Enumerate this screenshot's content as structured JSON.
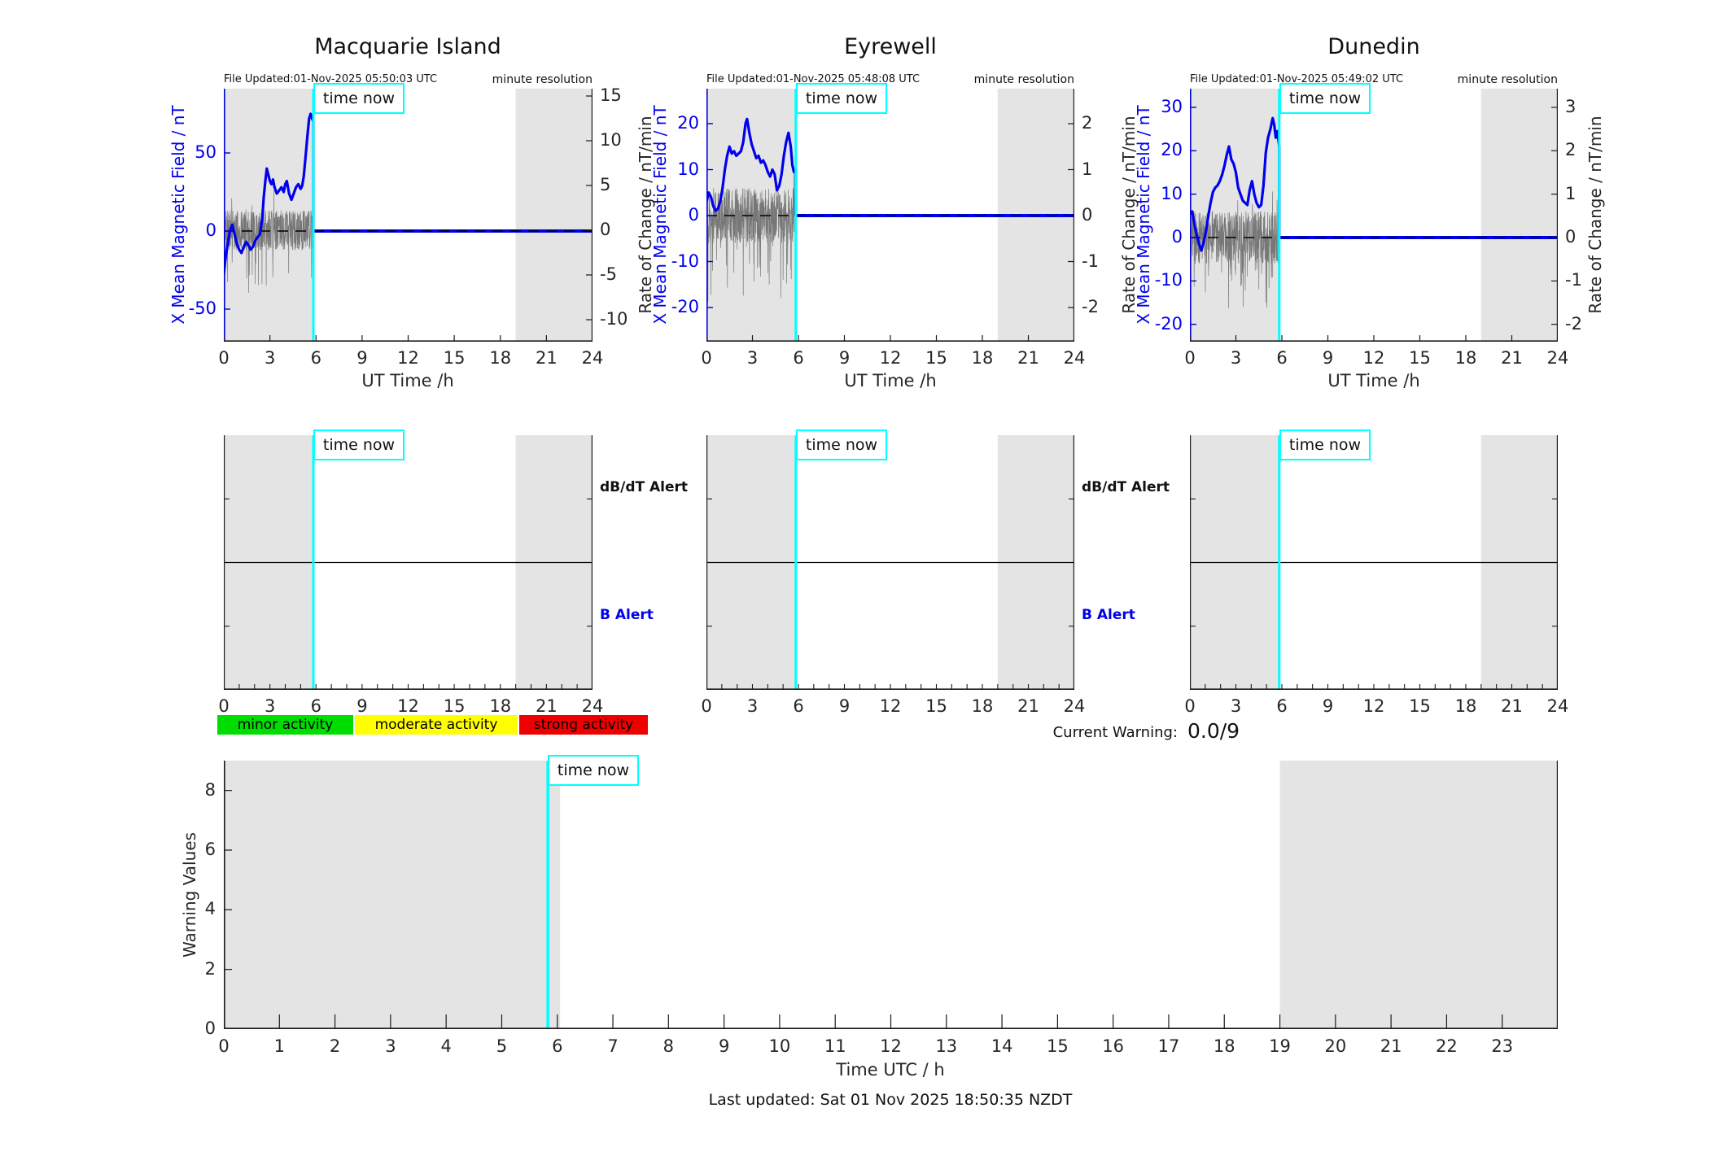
{
  "time_now": {
    "label": "time now",
    "hours_utc": 5.83
  },
  "alerts": {
    "db_dt_label": "dB/dT Alert",
    "b_label": "B Alert"
  },
  "legend": {
    "items": [
      {
        "label": "minor activity",
        "color": "#00dd00"
      },
      {
        "label": "moderate activity",
        "color": "#ffff00"
      },
      {
        "label": "strong activity",
        "color": "#ee0000"
      }
    ]
  },
  "warning": {
    "label": "Current Warning:",
    "value": "0.0/9",
    "scale_max": 9
  },
  "footer": {
    "last_updated": "Last updated: Sat 01 Nov 2025 18:50:35 NZDT"
  },
  "colors": {
    "field_line": "#0000ee",
    "axis_blue": "#0000dd",
    "noise": "#777777",
    "time_now_line": "#00ffff",
    "night_shading": "#e4e4e4",
    "axis_dark": "#1a1a1a"
  },
  "chart_data": [
    {
      "type": "line",
      "title": "Macquarie Island",
      "annotations": {
        "file_updated": "File Updated:01-Nov-2025 05:50:03 UTC",
        "minute_resolution": "minute resolution"
      },
      "xlabel": "UT Time /h",
      "xlim": [
        0,
        24
      ],
      "x_ticks": [
        0,
        3,
        6,
        9,
        12,
        15,
        18,
        21,
        24
      ],
      "night_shading_hours": [
        [
          0,
          5.87
        ],
        [
          19,
          24
        ]
      ],
      "left_axis": {
        "label": "X Mean Magnetic Field / nT",
        "ticks": [
          50,
          0,
          -50
        ],
        "range": [
          -70.8,
          91.1
        ]
      },
      "right_axis": {
        "label": "Rate of Change / nT/min",
        "ticks": [
          15,
          10,
          5,
          0,
          -5,
          -10
        ],
        "range": [
          -12.5,
          15.8
        ]
      },
      "series": [
        {
          "name": "X mean magnetic field",
          "axis": "left",
          "color": "#0000ee",
          "x": [
            0,
            0.1,
            0.25,
            0.4,
            0.55,
            0.7,
            0.85,
            1.0,
            1.15,
            1.3,
            1.45,
            1.6,
            1.75,
            1.9,
            2.05,
            2.2,
            2.35,
            2.5,
            2.6,
            2.7,
            2.8,
            2.9,
            3.0,
            3.1,
            3.2,
            3.3,
            3.45,
            3.6,
            3.75,
            3.9,
            4.0,
            4.1,
            4.25,
            4.4,
            4.55,
            4.7,
            4.85,
            5.0,
            5.1,
            5.2,
            5.3,
            5.45,
            5.55,
            5.65,
            5.75,
            5.83
          ],
          "y": [
            -28,
            -18,
            -8,
            0,
            4,
            -2,
            -8,
            -12,
            -14,
            -10,
            -7,
            -9,
            -12,
            -10,
            -6,
            -4,
            -2,
            8,
            22,
            32,
            40,
            36,
            32,
            30,
            33,
            28,
            24,
            26,
            28,
            25,
            30,
            32,
            24,
            20,
            24,
            28,
            30,
            27,
            29,
            35,
            45,
            62,
            72,
            75,
            72,
            70
          ]
        },
        {
          "name": "rate of change (minute noise)",
          "axis": "right",
          "color": "#777777",
          "synthetic": true,
          "amplitude": 2.2,
          "seed": 11,
          "ends_at_hour": 5.86
        },
        {
          "name": "flat after time now",
          "axis": "left",
          "color": "#0000ee",
          "x": [
            5.83,
            24
          ],
          "y": [
            0,
            0
          ]
        }
      ]
    },
    {
      "type": "line",
      "title": "Eyrewell",
      "annotations": {
        "file_updated": "File Updated:01-Nov-2025 05:48:08 UTC",
        "minute_resolution": "minute resolution"
      },
      "xlabel": "UT Time /h",
      "xlim": [
        0,
        24
      ],
      "x_ticks": [
        0,
        3,
        6,
        9,
        12,
        15,
        18,
        21,
        24
      ],
      "night_shading_hours": [
        [
          0,
          5.87
        ],
        [
          19,
          24
        ]
      ],
      "left_axis": {
        "label": "X Mean Magnetic Field / nT",
        "ticks": [
          20,
          10,
          0,
          -10,
          -20
        ],
        "range": [
          -27.4,
          27.6
        ]
      },
      "right_axis": {
        "label": "Rate of Change / nT/min",
        "ticks": [
          2,
          1,
          0,
          -1,
          -2
        ],
        "range": [
          -2.74,
          2.76
        ]
      },
      "series": [
        {
          "name": "X mean magnetic field",
          "axis": "left",
          "color": "#0000ee",
          "x": [
            0,
            0.15,
            0.3,
            0.45,
            0.6,
            0.75,
            0.9,
            1.05,
            1.2,
            1.35,
            1.5,
            1.65,
            1.8,
            1.95,
            2.1,
            2.25,
            2.4,
            2.55,
            2.65,
            2.8,
            2.95,
            3.1,
            3.25,
            3.4,
            3.55,
            3.7,
            3.85,
            4.0,
            4.15,
            4.3,
            4.45,
            4.6,
            4.75,
            4.9,
            5.05,
            5.2,
            5.35,
            5.5,
            5.6,
            5.7,
            5.83
          ],
          "y": [
            3,
            5,
            4,
            2,
            1,
            1.5,
            3,
            6,
            10,
            13,
            15,
            13.5,
            14,
            13,
            13.5,
            14,
            16,
            20,
            21,
            18,
            15.5,
            14,
            12.5,
            13,
            11.5,
            12,
            11,
            9.5,
            8.5,
            10,
            9,
            5.5,
            6.5,
            9,
            13,
            16,
            18,
            15,
            11,
            9.5,
            10
          ]
        },
        {
          "name": "rate of change (minute noise)",
          "axis": "right",
          "color": "#777777",
          "synthetic": true,
          "amplitude": 0.6,
          "seed": 22,
          "ends_at_hour": 5.86
        },
        {
          "name": "flat after time now",
          "axis": "left",
          "color": "#0000ee",
          "x": [
            5.83,
            24
          ],
          "y": [
            0,
            0
          ]
        }
      ]
    },
    {
      "type": "line",
      "title": "Dunedin",
      "annotations": {
        "file_updated": "File Updated:01-Nov-2025 05:49:02 UTC",
        "minute_resolution": "minute resolution"
      },
      "xlabel": "UT Time /h",
      "xlim": [
        0,
        24
      ],
      "x_ticks": [
        0,
        3,
        6,
        9,
        12,
        15,
        18,
        21,
        24
      ],
      "night_shading_hours": [
        [
          0,
          5.87
        ],
        [
          19,
          24
        ]
      ],
      "left_axis": {
        "label": "X Mean Magnetic Field / nT",
        "ticks": [
          30,
          20,
          10,
          0,
          -10,
          -20
        ],
        "range": [
          -24.0,
          34.3
        ]
      },
      "right_axis": {
        "label": "Rate of Change / nT/min",
        "ticks": [
          3,
          2,
          1,
          0,
          -1,
          -2
        ],
        "range": [
          -2.4,
          3.43
        ]
      },
      "series": [
        {
          "name": "X mean magnetic field",
          "axis": "left",
          "color": "#0000ee",
          "x": [
            0,
            0.15,
            0.3,
            0.45,
            0.6,
            0.75,
            0.9,
            1.05,
            1.2,
            1.35,
            1.5,
            1.65,
            1.8,
            1.95,
            2.1,
            2.25,
            2.4,
            2.55,
            2.7,
            2.85,
            3.0,
            3.15,
            3.3,
            3.45,
            3.6,
            3.75,
            3.9,
            4.05,
            4.2,
            4.35,
            4.5,
            4.65,
            4.8,
            4.95,
            5.1,
            5.25,
            5.4,
            5.5,
            5.6,
            5.7,
            5.83
          ],
          "y": [
            5.5,
            6,
            3,
            0.5,
            -1.5,
            -3,
            -1,
            1.5,
            5,
            8,
            10.5,
            11.5,
            12,
            13,
            14.5,
            16.5,
            19,
            21,
            18,
            17,
            15,
            11.5,
            10,
            8.5,
            8,
            7.5,
            11,
            13,
            10,
            8,
            7,
            7.5,
            12,
            19.5,
            23,
            25,
            27.5,
            26,
            23,
            24.5,
            21
          ]
        },
        {
          "name": "rate of change (minute noise)",
          "axis": "right",
          "color": "#777777",
          "synthetic": true,
          "amplitude": 0.6,
          "seed": 33,
          "ends_at_hour": 5.86
        },
        {
          "name": "flat after time now",
          "axis": "left",
          "color": "#0000ee",
          "x": [
            5.83,
            24
          ],
          "y": [
            0,
            0
          ]
        }
      ]
    },
    {
      "type": "line",
      "title": "Warning Values",
      "ylabel": "Warning Values",
      "xlabel": "Time UTC / h",
      "xlim": [
        0,
        24
      ],
      "ylim": [
        0,
        9
      ],
      "x_ticks": [
        0,
        1,
        2,
        3,
        4,
        5,
        6,
        7,
        8,
        9,
        10,
        11,
        12,
        13,
        14,
        15,
        16,
        17,
        18,
        19,
        20,
        21,
        22,
        23
      ],
      "y_ticks": [
        0,
        2,
        4,
        6,
        8
      ],
      "night_shading_hours": [
        [
          0,
          6.05
        ],
        [
          19,
          24
        ]
      ],
      "series": [
        {
          "name": "warning values",
          "x": [],
          "y": [],
          "note": "no warnings plotted; current value 0.0/9"
        }
      ]
    }
  ]
}
